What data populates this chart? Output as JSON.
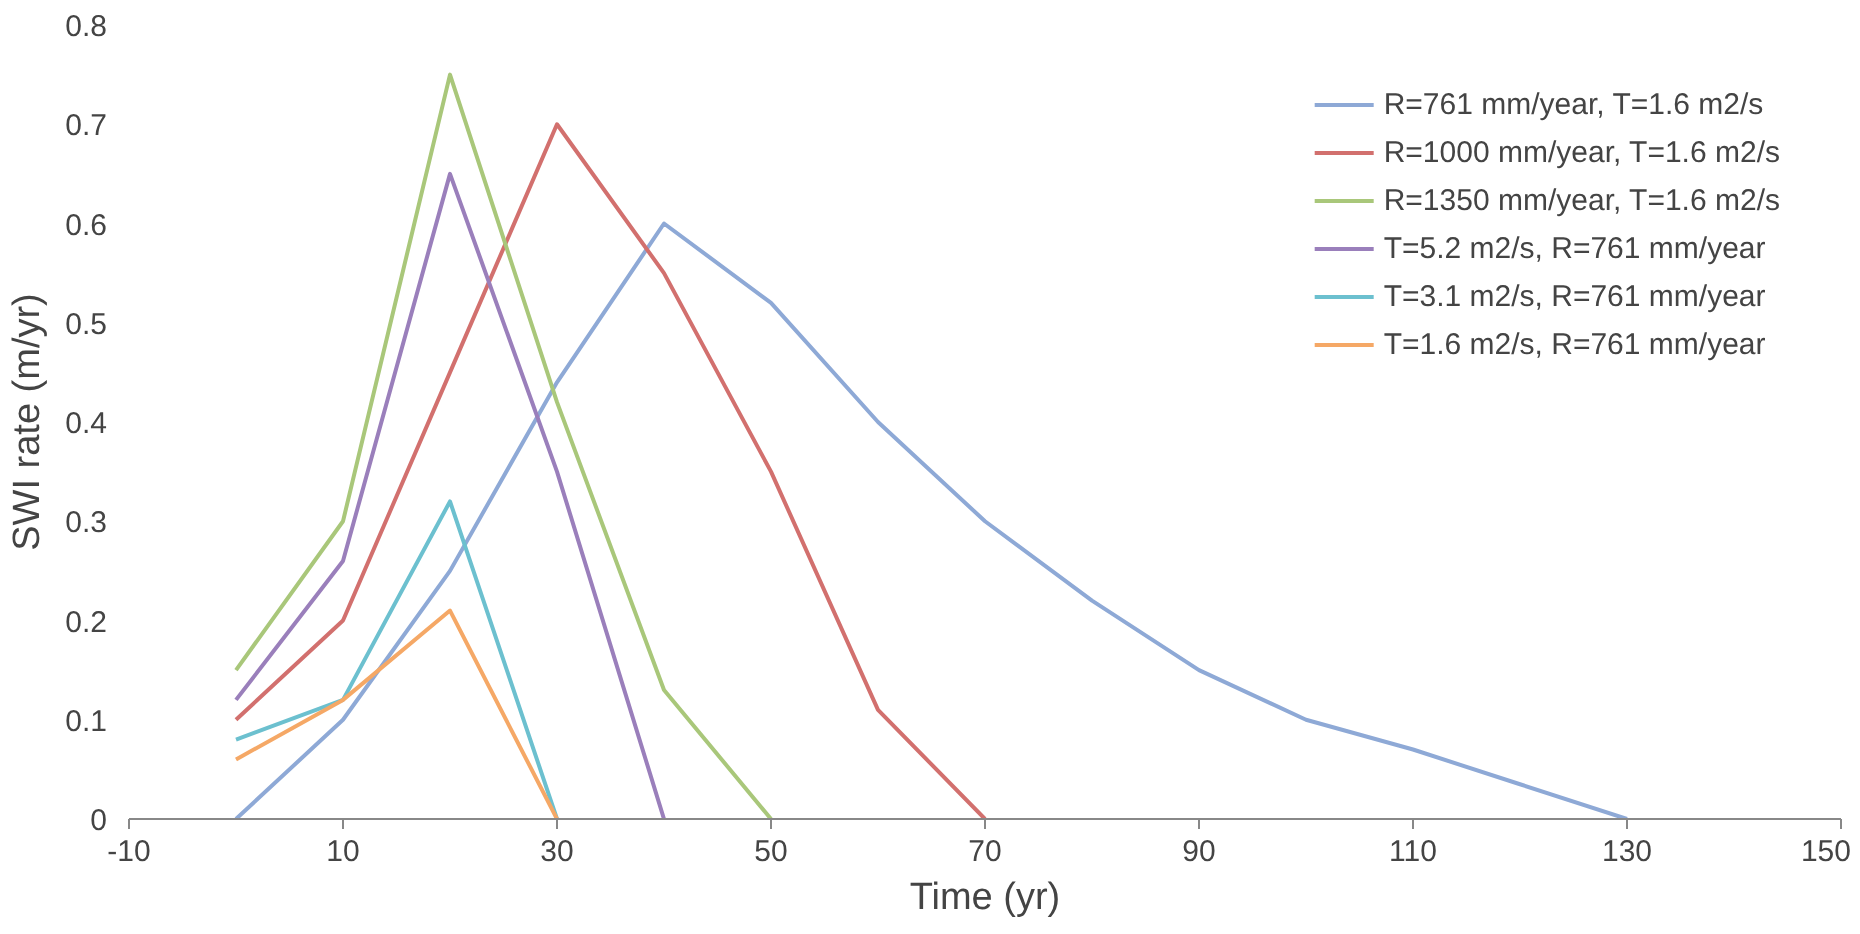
{
  "chart_data": {
    "type": "line",
    "xlabel": "Time (yr)",
    "ylabel": "SWI rate (m/yr)",
    "xlim": [
      -10,
      150
    ],
    "ylim": [
      0,
      0.8
    ],
    "xticks": [
      -10,
      10,
      30,
      50,
      70,
      90,
      110,
      130,
      150
    ],
    "yticks": [
      0,
      0.1,
      0.2,
      0.3,
      0.4,
      0.5,
      0.6,
      0.7,
      0.8
    ],
    "grid": false,
    "legend": "top right",
    "series": [
      {
        "name": "R=761 mm/year, T=1.6 m2/s",
        "color": "#8ea9d6",
        "x": [
          0,
          10,
          20,
          30,
          40,
          50,
          60,
          70,
          80,
          90,
          100,
          110,
          120,
          130
        ],
        "values": [
          0,
          0.1,
          0.25,
          0.44,
          0.6,
          0.52,
          0.4,
          0.3,
          0.22,
          0.15,
          0.1,
          0.07,
          0.035,
          0
        ]
      },
      {
        "name": "R=1000 mm/year, T=1.6 m2/s",
        "color": "#d2706e",
        "x": [
          0,
          10,
          20,
          30,
          40,
          50,
          60,
          70
        ],
        "values": [
          0.1,
          0.2,
          0.45,
          0.7,
          0.55,
          0.35,
          0.11,
          0
        ]
      },
      {
        "name": "R=1350 mm/year, T=1.6 m2/s",
        "color": "#a9c77a",
        "x": [
          0,
          10,
          20,
          30,
          40,
          50
        ],
        "values": [
          0.15,
          0.3,
          0.75,
          0.42,
          0.13,
          0
        ]
      },
      {
        "name": "T=5.2 m2/s, R=761 mm/year",
        "color": "#9a7fbb",
        "x": [
          0,
          10,
          20,
          30,
          40
        ],
        "values": [
          0.12,
          0.26,
          0.65,
          0.35,
          0
        ]
      },
      {
        "name": "T=3.1 m2/s, R=761 mm/year",
        "color": "#6cc0cf",
        "x": [
          0,
          10,
          20,
          30
        ],
        "values": [
          0.08,
          0.12,
          0.32,
          0
        ]
      },
      {
        "name": "T=1.6 m2/s, R=761 mm/year",
        "color": "#f5a866",
        "x": [
          0,
          10,
          20,
          30
        ],
        "values": [
          0.06,
          0.12,
          0.21,
          0
        ]
      }
    ]
  }
}
